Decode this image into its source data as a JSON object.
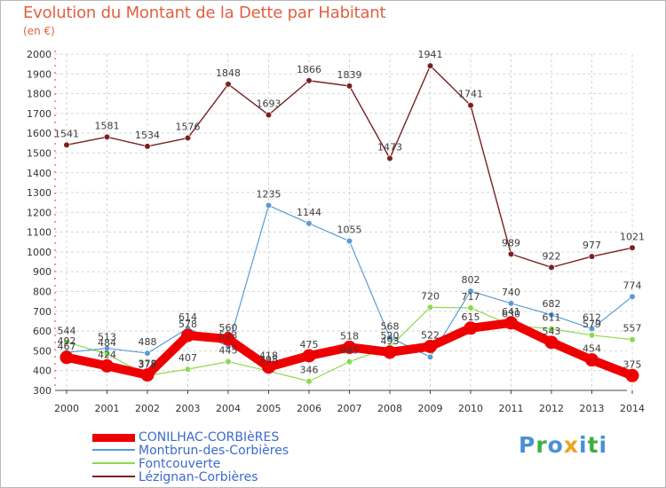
{
  "header": {
    "title": "Evolution du Montant de la Dette par Habitant",
    "subtitle": "(en €)"
  },
  "logo": {
    "text": "Proxiti",
    "colors": [
      "#4a8fd8",
      "#f0a020",
      "#3cb040"
    ]
  },
  "chart_data": {
    "type": "line",
    "title": "Evolution du Montant de la Dette par Habitant",
    "subtitle": "(en €)",
    "xlabel": "",
    "ylabel": "",
    "x": [
      "2000",
      "2001",
      "2002",
      "2003",
      "2004",
      "2005",
      "2006",
      "2007",
      "2008",
      "2009",
      "2010",
      "2011",
      "2012",
      "2013",
      "2014"
    ],
    "ylim": [
      300,
      2000
    ],
    "yticks": [
      300,
      400,
      500,
      600,
      700,
      800,
      900,
      1000,
      1100,
      1200,
      1300,
      1400,
      1500,
      1600,
      1700,
      1800,
      1900,
      2000
    ],
    "grid": true,
    "legend_position": "bottom-left",
    "series": [
      {
        "name": "CONILHAC-CORBIèRES",
        "color": "#ee0000",
        "values": [
          467,
          424,
          378,
          578,
          560,
          418,
          475,
          518,
          493,
          522,
          615,
          641,
          543,
          454,
          375
        ]
      },
      {
        "name": "Montbrun-des-Corbières",
        "color": "#5a9ad6",
        "values": [
          492,
          513,
          488,
          614,
          523,
          1235,
          1144,
          1055,
          568,
          469,
          802,
          740,
          682,
          612,
          774
        ]
      },
      {
        "name": "Fontcouverte",
        "color": "#8cd94e",
        "values": [
          544,
          484,
          375,
          407,
          445,
          398,
          346,
          445,
          520,
          720,
          717,
          630,
          611,
          579,
          557
        ]
      },
      {
        "name": "Lézignan-Corbières",
        "color": "#7a2020",
        "values": [
          1541,
          1581,
          1534,
          1576,
          1848,
          1693,
          1866,
          1839,
          1473,
          1941,
          1741,
          989,
          922,
          977,
          1021
        ]
      }
    ],
    "data_labels": [
      [
        "467",
        "424",
        "378",
        "578",
        "560",
        "418",
        "475",
        "518",
        "493",
        "522",
        "615",
        "641",
        "543",
        "454",
        "375"
      ],
      [
        "492",
        "513",
        "488",
        "614",
        "523",
        "1235",
        "1144",
        "1055",
        "568",
        "",
        "802",
        "740",
        "682",
        "612",
        "774"
      ],
      [
        "544",
        "484",
        "375",
        "407",
        "445",
        "398",
        "346",
        "445",
        "520",
        "720",
        "717",
        "630",
        "611",
        "579",
        "557"
      ],
      [
        "1541",
        "1581",
        "1534",
        "1576",
        "1848",
        "1693",
        "1866",
        "1839",
        "1473",
        "1941",
        "1741",
        "989",
        "922",
        "977",
        "1021"
      ]
    ]
  }
}
